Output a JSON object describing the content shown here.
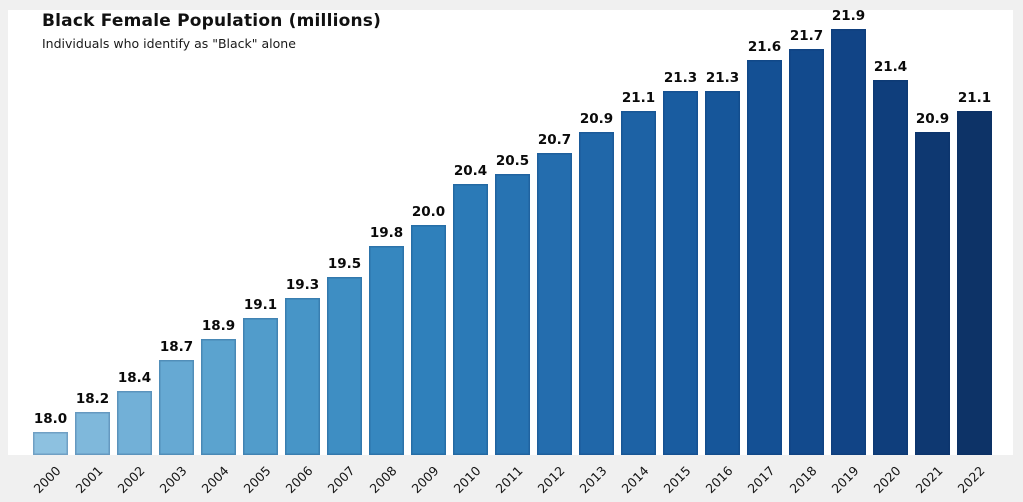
{
  "page": {
    "background_color": "#f0f0f0",
    "plot_background_color": "#ffffff",
    "text_color": "#111111"
  },
  "header": {
    "title": "Black Female Population (millions)",
    "subtitle": "Individuals who identify as \"Black\" alone"
  },
  "chart_data": {
    "type": "bar",
    "title": "Black Female Population (millions)",
    "subtitle": "Individuals who identify as \"Black\" alone",
    "categories": [
      "2000",
      "2001",
      "2002",
      "2003",
      "2004",
      "2005",
      "2006",
      "2007",
      "2008",
      "2009",
      "2010",
      "2011",
      "2012",
      "2013",
      "2014",
      "2015",
      "2016",
      "2017",
      "2018",
      "2019",
      "2020",
      "2021",
      "2022"
    ],
    "values": [
      18.0,
      18.2,
      18.4,
      18.7,
      18.9,
      19.1,
      19.3,
      19.5,
      19.8,
      20.0,
      20.4,
      20.5,
      20.7,
      20.9,
      21.1,
      21.3,
      21.3,
      21.6,
      21.7,
      21.9,
      21.4,
      20.9,
      21.1
    ],
    "bar_value_labels": [
      "18.0",
      "18.2",
      "18.4",
      "18.7",
      "18.9",
      "19.1",
      "19.3",
      "19.5",
      "19.8",
      "20.0",
      "20.4",
      "20.5",
      "20.7",
      "20.9",
      "21.1",
      "21.3",
      "21.3",
      "21.6",
      "21.7",
      "21.9",
      "21.4",
      "20.9",
      "21.1"
    ],
    "bar_colors": [
      "#8dc1e0",
      "#7fb8db",
      "#72b0d7",
      "#66a9d3",
      "#5ba3cf",
      "#519ccb",
      "#4795c7",
      "#3e8ec3",
      "#3687bf",
      "#2f80bb",
      "#2b7ab7",
      "#2773b2",
      "#246dae",
      "#2067a9",
      "#1d62a5",
      "#195ca0",
      "#16569a",
      "#145094",
      "#124a8d",
      "#114486",
      "#0f3e7c",
      "#0e3871",
      "#0d3367"
    ],
    "xlabel": "",
    "ylabel": "",
    "ylim": [
      17.78,
      22.08
    ],
    "grid": false,
    "legend": "none",
    "x_tick_rotation_deg": -45,
    "value_label_decimals": 1
  }
}
